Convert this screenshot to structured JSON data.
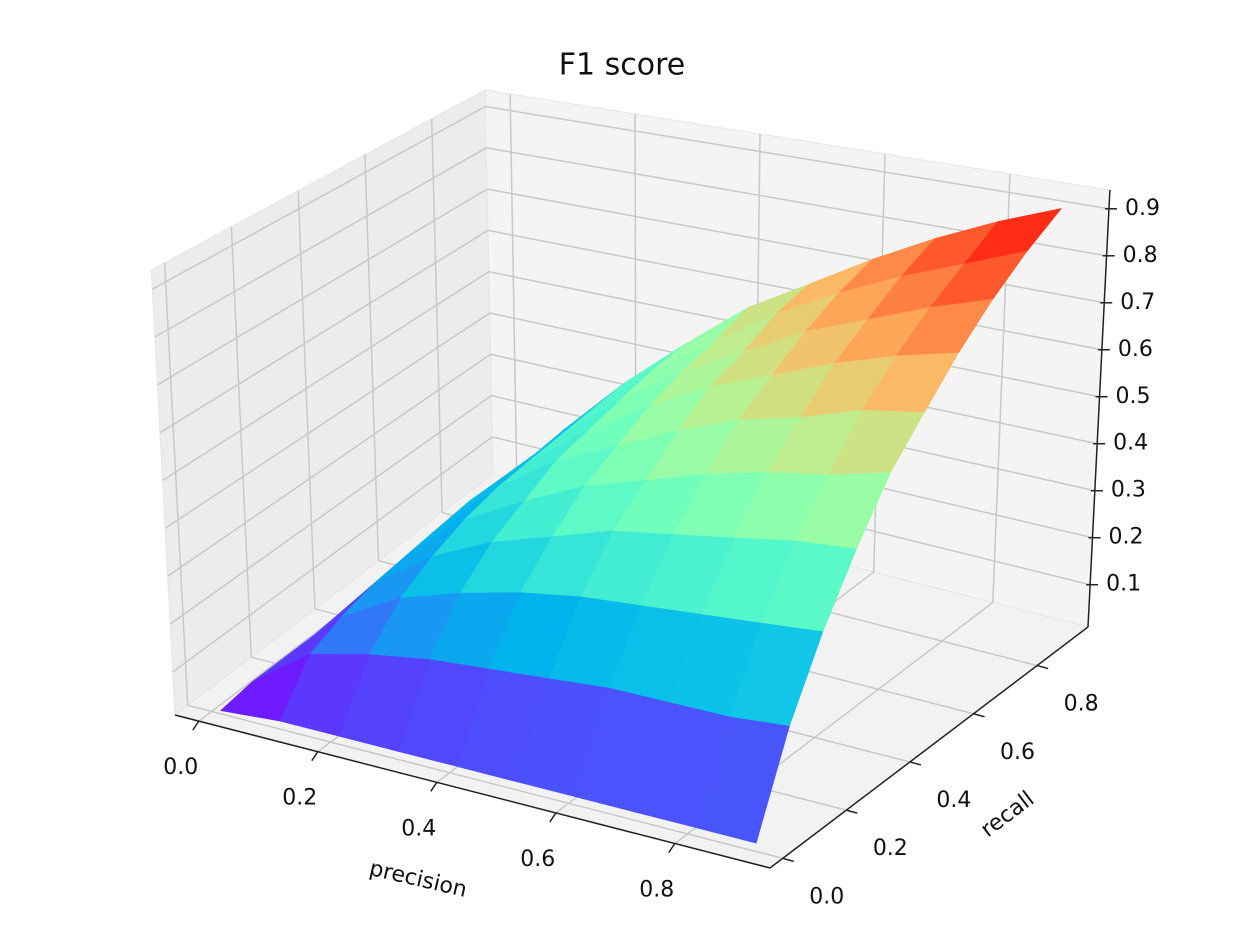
{
  "chart_data": {
    "type": "surface",
    "title": "F1 score",
    "xlabel": "precision",
    "ylabel": "recall",
    "x": [
      0.01,
      0.11,
      0.21,
      0.31,
      0.41,
      0.51,
      0.61,
      0.71,
      0.81,
      0.91
    ],
    "y": [
      0.01,
      0.11,
      0.21,
      0.31,
      0.41,
      0.51,
      0.61,
      0.71,
      0.81,
      0.91
    ],
    "z": [
      [
        0.01,
        0.02,
        0.02,
        0.02,
        0.02,
        0.02,
        0.02,
        0.02,
        0.02,
        0.02
      ],
      [
        0.02,
        0.11,
        0.14,
        0.16,
        0.17,
        0.18,
        0.19,
        0.19,
        0.19,
        0.2
      ],
      [
        0.02,
        0.14,
        0.21,
        0.25,
        0.28,
        0.3,
        0.31,
        0.32,
        0.33,
        0.34
      ],
      [
        0.02,
        0.16,
        0.25,
        0.31,
        0.35,
        0.39,
        0.41,
        0.43,
        0.45,
        0.46
      ],
      [
        0.02,
        0.17,
        0.28,
        0.35,
        0.41,
        0.45,
        0.49,
        0.52,
        0.54,
        0.57
      ],
      [
        0.02,
        0.18,
        0.3,
        0.39,
        0.45,
        0.51,
        0.56,
        0.59,
        0.63,
        0.65
      ],
      [
        0.02,
        0.19,
        0.31,
        0.41,
        0.49,
        0.56,
        0.61,
        0.66,
        0.7,
        0.73
      ],
      [
        0.02,
        0.19,
        0.32,
        0.43,
        0.52,
        0.59,
        0.66,
        0.71,
        0.76,
        0.8
      ],
      [
        0.02,
        0.19,
        0.33,
        0.45,
        0.54,
        0.63,
        0.7,
        0.76,
        0.81,
        0.86
      ],
      [
        0.02,
        0.2,
        0.34,
        0.46,
        0.57,
        0.65,
        0.73,
        0.8,
        0.86,
        0.91
      ]
    ],
    "xlim": [
      -0.04,
      0.96
    ],
    "ylim": [
      -0.04,
      0.96
    ],
    "zlim": [
      0.01,
      0.94
    ],
    "xticks": [
      {
        "value": 0,
        "label": "0.0"
      },
      0.2,
      0.4,
      0.6,
      0.8
    ],
    "yticks": [
      {
        "value": 0,
        "label": "0.0"
      },
      0.2,
      0.4,
      0.6,
      0.8
    ],
    "zticks": [
      0.1,
      0.2,
      0.3,
      0.4,
      0.5,
      0.6,
      0.7,
      0.8,
      0.9
    ],
    "colormap": "rainbow",
    "grid": true
  }
}
